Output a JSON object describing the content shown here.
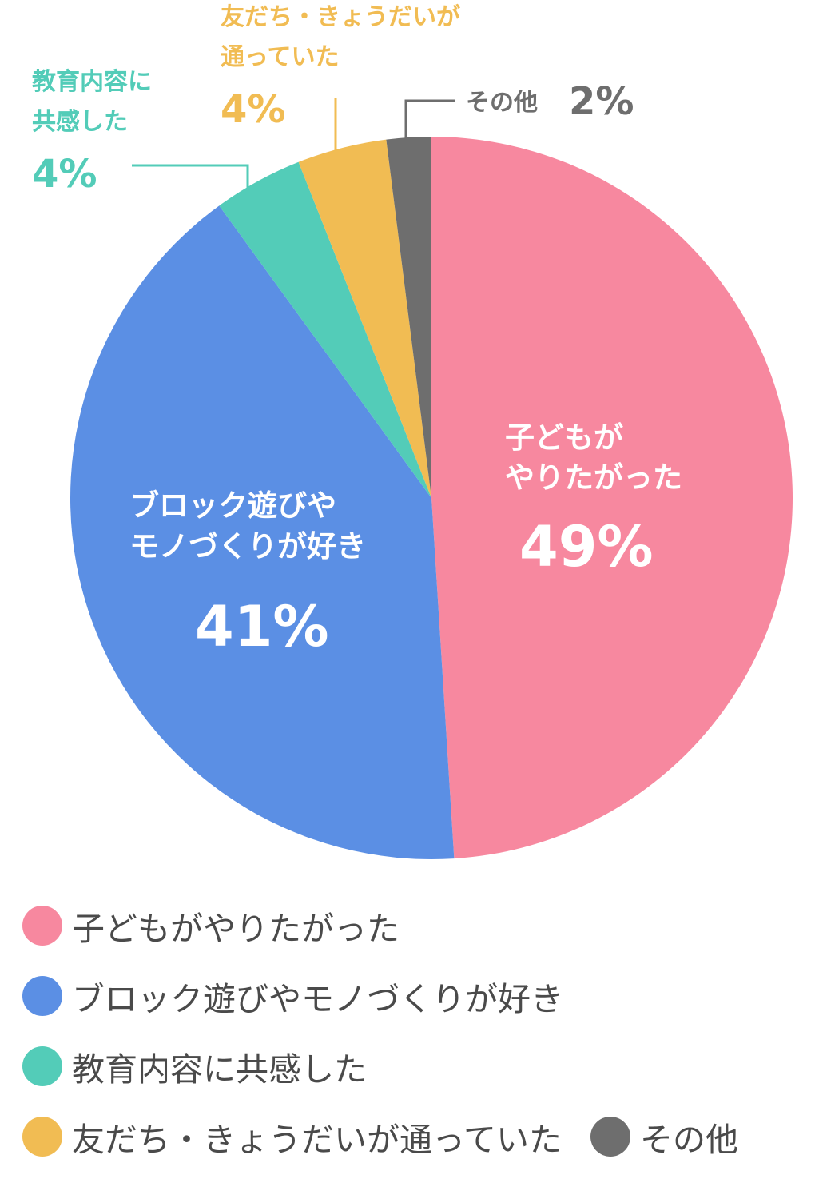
{
  "chart_data": {
    "type": "pie",
    "start": "top",
    "direction": "clockwise",
    "slices": [
      {
        "label": "子どもがやりたがった",
        "value": 49,
        "value_label": "49%",
        "color": "#f7889f",
        "label_lines": [
          "子どもが",
          "やりたがった"
        ],
        "label_placement": "inside"
      },
      {
        "label": "ブロック遊びやモノづくりが好き",
        "value": 41,
        "value_label": "41%",
        "color": "#5b8fe4",
        "label_lines": [
          "ブロック遊びや",
          "モノづくりが好き"
        ],
        "label_placement": "inside"
      },
      {
        "label": "教育内容に共感した",
        "value": 4,
        "value_label": "4%",
        "color": "#53ccb8",
        "label_lines": [
          "教育内容に",
          "共感した"
        ],
        "label_placement": "outside"
      },
      {
        "label": "友だち・きょうだいが通っていた",
        "value": 4,
        "value_label": "4%",
        "color": "#f1bc53",
        "label_lines": [
          "友だち・きょうだいが",
          "通っていた"
        ],
        "label_placement": "outside"
      },
      {
        "label": "その他",
        "value": 2,
        "value_label": "2%",
        "color": "#6e6e6e",
        "label_lines": [
          "その他"
        ],
        "label_placement": "outside"
      }
    ],
    "legend": {
      "placement": "bottom",
      "rows": [
        [
          0
        ],
        [
          1
        ],
        [
          2
        ],
        [
          3,
          4
        ]
      ]
    }
  }
}
